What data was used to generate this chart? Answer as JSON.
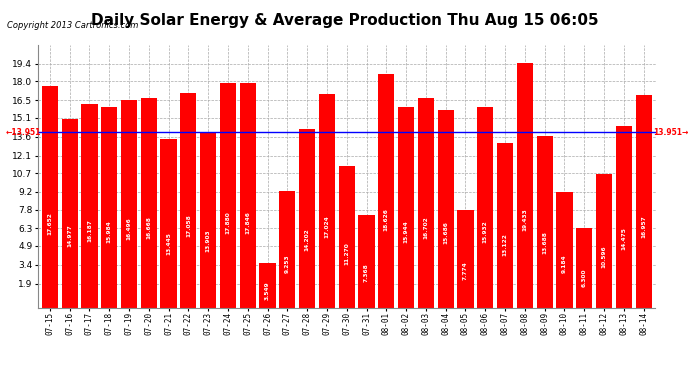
{
  "title": "Daily Solar Energy & Average Production Thu Aug 15 06:05",
  "copyright": "Copyright 2013 Cartronics.com",
  "categories": [
    "07-15",
    "07-16",
    "07-17",
    "07-18",
    "07-19",
    "07-20",
    "07-21",
    "07-22",
    "07-23",
    "07-24",
    "07-25",
    "07-26",
    "07-27",
    "07-28",
    "07-29",
    "07-30",
    "07-31",
    "08-01",
    "08-02",
    "08-03",
    "08-04",
    "08-05",
    "08-06",
    "08-07",
    "08-08",
    "08-09",
    "08-10",
    "08-11",
    "08-12",
    "08-13",
    "08-14"
  ],
  "values": [
    17.652,
    14.977,
    16.187,
    15.984,
    16.496,
    16.668,
    13.445,
    17.058,
    13.903,
    17.88,
    17.846,
    3.549,
    9.253,
    14.202,
    17.024,
    11.27,
    7.368,
    18.626,
    15.944,
    16.702,
    15.686,
    7.774,
    15.932,
    13.122,
    19.433,
    13.688,
    9.184,
    6.3,
    10.596,
    14.475,
    16.957
  ],
  "average": 13.951,
  "bar_color": "#ff0000",
  "average_line_color": "#0000ff",
  "average_label_color": "#ff0000",
  "background_color": "#ffffff",
  "grid_color": "#aaaaaa",
  "ylim": [
    0,
    20.9
  ],
  "yticks": [
    1.9,
    3.4,
    4.9,
    6.3,
    7.8,
    9.2,
    10.7,
    12.1,
    13.6,
    15.1,
    16.5,
    18.0,
    19.4
  ],
  "title_fontsize": 11,
  "bar_width": 0.82,
  "legend_avg_bg": "#0000cc",
  "legend_daily_bg": "#ff0000",
  "legend_text_color": "#ffffff",
  "value_label_fontsize": 4.2,
  "avg_label_fontsize": 5.5,
  "copyright_fontsize": 6,
  "xtick_fontsize": 5.5,
  "ytick_fontsize": 6.5
}
